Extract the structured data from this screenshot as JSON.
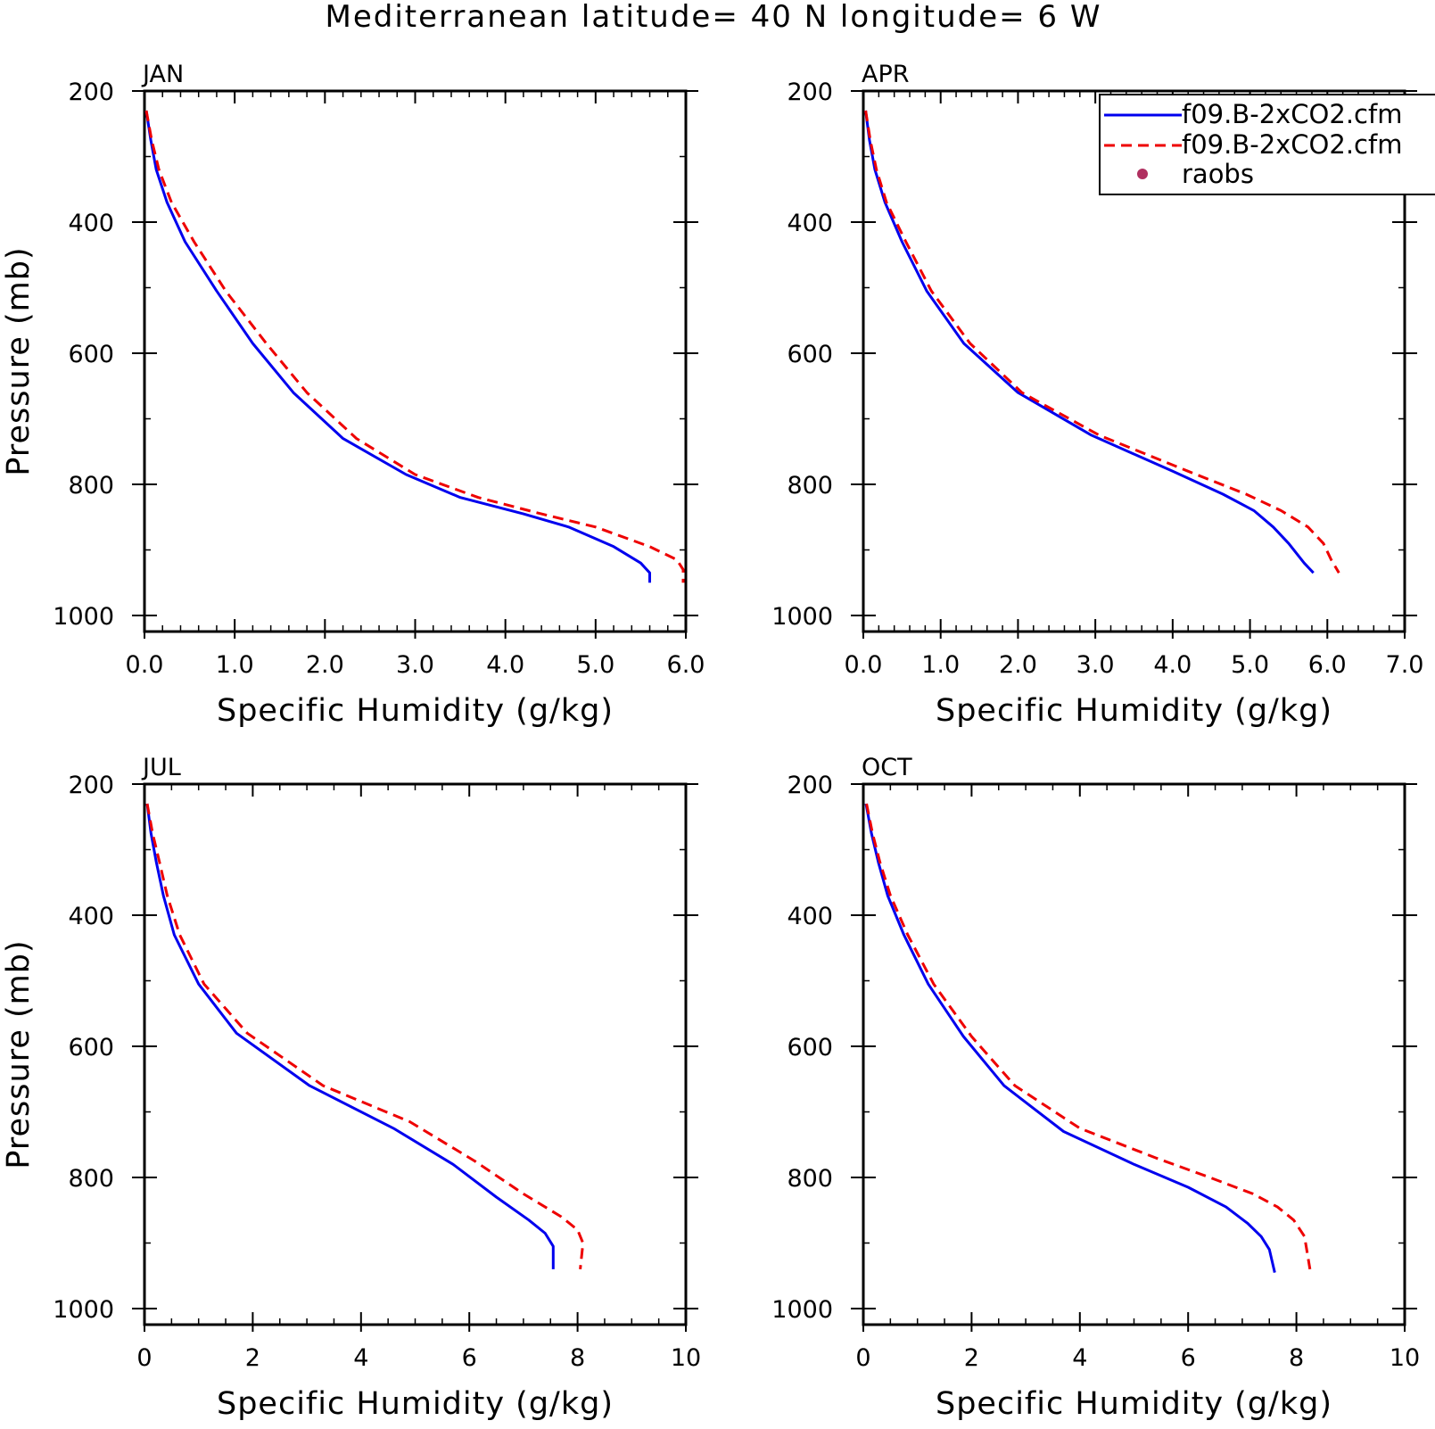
{
  "title": "Mediterranean  latitude= 40 N longitude= 6 W",
  "legend": {
    "entries": [
      {
        "label": "f09.B-2xCO2.cfm",
        "style": "solid",
        "color": "#0000ee"
      },
      {
        "label": "f09.B-2xCO2.cfm",
        "style": "dashed",
        "color": "#ee0000"
      },
      {
        "label": "raobs",
        "style": "marker",
        "color": "#b03060"
      }
    ]
  },
  "chart_data": [
    {
      "type": "line",
      "panel_title": "JAN",
      "xlabel": "Specific Humidity (g/kg)",
      "ylabel": "Pressure (mb)",
      "xlim": [
        0,
        6
      ],
      "ylim": [
        200,
        1000
      ],
      "y_inverted": true,
      "xticks": [
        "0.0",
        "1.0",
        "2.0",
        "3.0",
        "4.0",
        "5.0",
        "6.0"
      ],
      "yticks": [
        "200",
        "400",
        "600",
        "800",
        "1000"
      ],
      "series": [
        {
          "x": [
            0.02,
            0.07,
            0.13,
            0.25,
            0.45,
            0.8,
            1.2,
            1.65,
            2.2,
            2.9,
            3.5,
            4.2,
            4.7,
            5.2,
            5.5,
            5.6,
            5.6
          ],
          "y": [
            230,
            275,
            320,
            370,
            430,
            505,
            585,
            660,
            730,
            785,
            820,
            845,
            865,
            895,
            920,
            935,
            950
          ]
        },
        {
          "x": [
            0.02,
            0.08,
            0.16,
            0.3,
            0.55,
            0.9,
            1.35,
            1.8,
            2.35,
            3.0,
            3.7,
            4.4,
            5.0,
            5.6,
            5.9,
            5.97,
            5.97
          ],
          "y": [
            230,
            275,
            320,
            370,
            430,
            505,
            585,
            660,
            730,
            785,
            820,
            845,
            865,
            895,
            915,
            930,
            950
          ]
        }
      ]
    },
    {
      "type": "line",
      "panel_title": "APR",
      "xlabel": "Specific Humidity (g/kg)",
      "ylabel": "",
      "xlim": [
        0,
        7
      ],
      "ylim": [
        200,
        1000
      ],
      "y_inverted": true,
      "xticks": [
        "0.0",
        "1.0",
        "2.0",
        "3.0",
        "4.0",
        "5.0",
        "6.0",
        "7.0"
      ],
      "yticks": [
        "200",
        "400",
        "600",
        "800",
        "1000"
      ],
      "series": [
        {
          "x": [
            0.03,
            0.08,
            0.15,
            0.28,
            0.5,
            0.82,
            1.3,
            2.0,
            2.95,
            4.0,
            4.65,
            5.05,
            5.3,
            5.5,
            5.7,
            5.82
          ],
          "y": [
            230,
            275,
            320,
            370,
            430,
            505,
            585,
            660,
            725,
            780,
            815,
            840,
            865,
            890,
            920,
            935
          ]
        },
        {
          "x": [
            0.03,
            0.09,
            0.17,
            0.3,
            0.55,
            0.88,
            1.38,
            2.05,
            3.05,
            4.2,
            4.95,
            5.4,
            5.75,
            5.95,
            6.05,
            6.15
          ],
          "y": [
            230,
            275,
            320,
            370,
            430,
            505,
            585,
            660,
            725,
            780,
            815,
            840,
            865,
            890,
            915,
            935
          ]
        }
      ]
    },
    {
      "type": "line",
      "panel_title": "JUL",
      "xlabel": "Specific Humidity (g/kg)",
      "ylabel": "Pressure (mb)",
      "xlim": [
        0,
        10
      ],
      "ylim": [
        200,
        1000
      ],
      "y_inverted": true,
      "xticks": [
        "0",
        "2",
        "4",
        "6",
        "8",
        "10"
      ],
      "yticks": [
        "200",
        "400",
        "600",
        "800",
        "1000"
      ],
      "series": [
        {
          "x": [
            0.05,
            0.12,
            0.22,
            0.35,
            0.55,
            1.0,
            1.7,
            3.05,
            4.6,
            5.7,
            6.5,
            7.1,
            7.4,
            7.55,
            7.55
          ],
          "y": [
            230,
            275,
            320,
            370,
            430,
            505,
            580,
            660,
            725,
            780,
            830,
            865,
            885,
            905,
            940
          ]
        },
        {
          "x": [
            0.05,
            0.15,
            0.28,
            0.42,
            0.65,
            1.1,
            1.9,
            3.3,
            4.9,
            6.1,
            7.0,
            7.7,
            8.0,
            8.1,
            8.05
          ],
          "y": [
            230,
            275,
            320,
            370,
            430,
            505,
            580,
            660,
            715,
            775,
            825,
            860,
            880,
            900,
            940
          ]
        }
      ]
    },
    {
      "type": "line",
      "panel_title": "OCT",
      "xlabel": "Specific Humidity (g/kg)",
      "ylabel": "",
      "xlim": [
        0,
        10
      ],
      "ylim": [
        200,
        1000
      ],
      "y_inverted": true,
      "xticks": [
        "0",
        "2",
        "4",
        "6",
        "8",
        "10"
      ],
      "yticks": [
        "200",
        "400",
        "600",
        "800",
        "1000"
      ],
      "series": [
        {
          "x": [
            0.05,
            0.15,
            0.28,
            0.45,
            0.75,
            1.2,
            1.85,
            2.6,
            3.7,
            5.0,
            6.0,
            6.7,
            7.1,
            7.35,
            7.5,
            7.6
          ],
          "y": [
            230,
            275,
            320,
            370,
            430,
            505,
            585,
            660,
            730,
            780,
            815,
            845,
            870,
            890,
            910,
            945
          ]
        },
        {
          "x": [
            0.06,
            0.17,
            0.31,
            0.5,
            0.82,
            1.3,
            2.0,
            2.8,
            4.0,
            5.4,
            6.4,
            7.2,
            7.65,
            7.95,
            8.15,
            8.25
          ],
          "y": [
            230,
            275,
            320,
            370,
            430,
            505,
            585,
            660,
            725,
            770,
            800,
            825,
            845,
            865,
            890,
            940
          ]
        }
      ]
    }
  ]
}
